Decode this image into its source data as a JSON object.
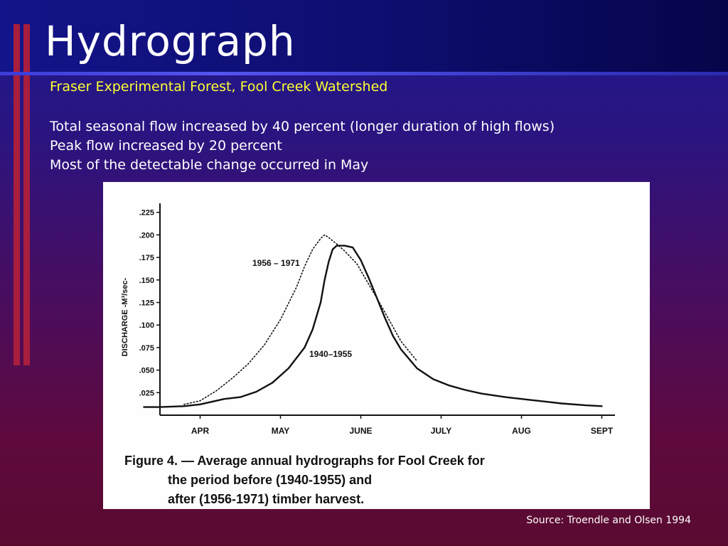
{
  "slide": {
    "title": "Hydrograph",
    "subtitle": "Fraser Experimental Forest, Fool Creek Watershed",
    "bullets": [
      "Total seasonal flow increased by 40 percent (longer duration of high flows)",
      "Peak flow increased by 20 percent",
      "Most of the detectable change occurred in May"
    ],
    "source": "Source: Troendle and Olsen 1994"
  },
  "colors": {
    "title": "#ffffff",
    "subtitle": "#ffff33",
    "accent_bar": "#a81e3c",
    "figure_ink": "#111111"
  },
  "chart_data": {
    "type": "line",
    "ylabel": "DISCHARGE -M³/sec-",
    "x_categories": [
      "APR",
      "MAY",
      "JUNE",
      "JULY",
      "AUG",
      "SEPT"
    ],
    "y_ticks": [
      ".025",
      ".050",
      ".075",
      ".100",
      ".125",
      ".150",
      ".175",
      ".200",
      ".225"
    ],
    "ylim": [
      0,
      0.235
    ],
    "grid": false,
    "caption": {
      "label": "Figure 4.",
      "dash": "—",
      "text": "Average annual hydrographs for Fool Creek for the period before (1940-1955) and after (1956-1971) timber harvest."
    },
    "series": [
      {
        "name": "1940–1955",
        "style": "solid",
        "points": [
          [
            -0.2,
            0.009
          ],
          [
            0.0,
            0.009
          ],
          [
            0.3,
            0.01
          ],
          [
            0.5,
            0.012
          ],
          [
            0.8,
            0.018
          ],
          [
            1.0,
            0.02
          ],
          [
            1.2,
            0.026
          ],
          [
            1.4,
            0.036
          ],
          [
            1.6,
            0.052
          ],
          [
            1.8,
            0.075
          ],
          [
            1.9,
            0.095
          ],
          [
            2.0,
            0.125
          ],
          [
            2.05,
            0.15
          ],
          [
            2.1,
            0.17
          ],
          [
            2.15,
            0.184
          ],
          [
            2.2,
            0.188
          ],
          [
            2.3,
            0.188
          ],
          [
            2.4,
            0.186
          ],
          [
            2.5,
            0.172
          ],
          [
            2.6,
            0.152
          ],
          [
            2.7,
            0.13
          ],
          [
            2.8,
            0.108
          ],
          [
            2.9,
            0.088
          ],
          [
            3.0,
            0.073
          ],
          [
            3.2,
            0.052
          ],
          [
            3.4,
            0.04
          ],
          [
            3.6,
            0.033
          ],
          [
            3.8,
            0.028
          ],
          [
            4.0,
            0.024
          ],
          [
            4.3,
            0.02
          ],
          [
            4.6,
            0.017
          ],
          [
            5.0,
            0.013
          ],
          [
            5.3,
            0.011
          ],
          [
            5.5,
            0.01
          ]
        ]
      },
      {
        "name": "1956–1971",
        "style": "dotted",
        "points": [
          [
            0.3,
            0.012
          ],
          [
            0.5,
            0.016
          ],
          [
            0.7,
            0.027
          ],
          [
            0.9,
            0.041
          ],
          [
            1.1,
            0.057
          ],
          [
            1.3,
            0.078
          ],
          [
            1.5,
            0.106
          ],
          [
            1.7,
            0.142
          ],
          [
            1.8,
            0.165
          ],
          [
            1.9,
            0.184
          ],
          [
            2.0,
            0.196
          ],
          [
            2.05,
            0.2
          ],
          [
            2.1,
            0.197
          ],
          [
            2.2,
            0.19
          ],
          [
            2.3,
            0.182
          ],
          [
            2.45,
            0.168
          ],
          [
            2.6,
            0.145
          ],
          [
            2.75,
            0.122
          ],
          [
            2.9,
            0.098
          ],
          [
            3.0,
            0.082
          ],
          [
            3.2,
            0.06
          ]
        ]
      }
    ],
    "annotations": [
      {
        "text": "1956 – 1971",
        "series": "1956–1971"
      },
      {
        "text": "1940–1955",
        "series": "1940–1955"
      }
    ]
  }
}
